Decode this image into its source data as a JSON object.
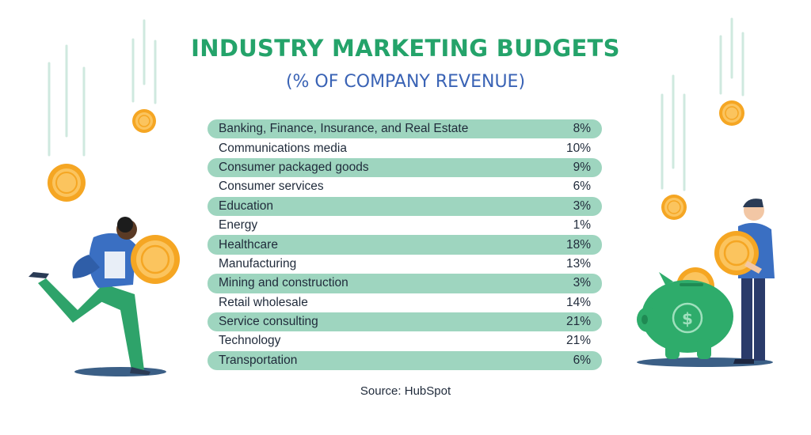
{
  "chart_data": {
    "type": "table",
    "title": "INDUSTRY MARKETING BUDGETS",
    "subtitle": "(% OF COMPANY REVENUE)",
    "rows": [
      {
        "label": "Banking, Finance, Insurance, and Real Estate",
        "value": "8%"
      },
      {
        "label": "Communications media",
        "value": "10%"
      },
      {
        "label": "Consumer packaged goods",
        "value": "9%"
      },
      {
        "label": "Consumer services",
        "value": "6%"
      },
      {
        "label": "Education",
        "value": "3%"
      },
      {
        "label": "Energy",
        "value": "1%"
      },
      {
        "label": "Healthcare",
        "value": "18%"
      },
      {
        "label": "Manufacturing",
        "value": "13%"
      },
      {
        "label": "Mining and construction",
        "value": "3%"
      },
      {
        "label": "Retail wholesale",
        "value": "14%"
      },
      {
        "label": "Service consulting",
        "value": "21%"
      },
      {
        "label": "Technology",
        "value": "21%"
      },
      {
        "label": "Transportation",
        "value": "6%"
      }
    ],
    "source": "Source: HubSpot"
  },
  "colors": {
    "title": "#24a36a",
    "subtitle": "#3a63b5",
    "row_shade": "#9ed5bf",
    "coin": "#f5a623",
    "piggy_bank": "#2eac6b"
  },
  "icons": [
    "falling-coin-icon",
    "running-person-illustration",
    "piggy-bank-icon",
    "dollar-sign-icon",
    "standing-person-illustration"
  ]
}
